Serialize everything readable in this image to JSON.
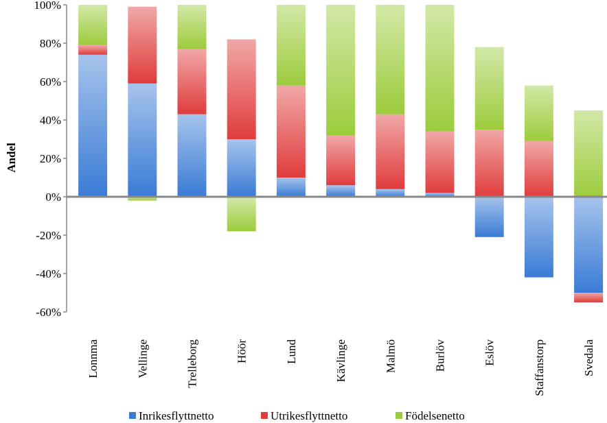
{
  "chart_data": {
    "type": "stacked_bar",
    "y_label": "Andel",
    "categories": [
      "Lonnma",
      "Vellinge",
      "Trelleborg",
      "Höör",
      "Lund",
      "Kävlinge",
      "Malmö",
      "Burlöv",
      "Eslöv",
      "Staffanstorp",
      "Svedala"
    ],
    "series": [
      {
        "name": "Inrikesflyttnetto",
        "color": "#3a7bd5",
        "values": [
          74,
          59,
          43,
          30,
          10,
          6,
          4,
          2,
          -21,
          -42,
          -50
        ]
      },
      {
        "name": "Utrikesflyttnetto",
        "color": "#e03c3c",
        "values": [
          5,
          40,
          34,
          52,
          48,
          26,
          39,
          32,
          35,
          29,
          -5
        ]
      },
      {
        "name": "Födelsenetto",
        "color": "#9ccc3c",
        "values": [
          21,
          -2,
          23,
          -18,
          42,
          68,
          57,
          66,
          43,
          29,
          45
        ]
      }
    ],
    "ylim": [
      -60,
      100
    ],
    "yticks": [
      {
        "value": -60,
        "label": "-60%"
      },
      {
        "value": -40,
        "label": "-40%"
      },
      {
        "value": -20,
        "label": "-20%"
      },
      {
        "value": 0,
        "label": "0%"
      },
      {
        "value": 20,
        "label": "20%"
      },
      {
        "value": 40,
        "label": "40%"
      },
      {
        "value": 60,
        "label": "60%"
      },
      {
        "value": 80,
        "label": "80%"
      },
      {
        "value": 100,
        "label": "100%"
      }
    ],
    "legend": "bottom"
  }
}
